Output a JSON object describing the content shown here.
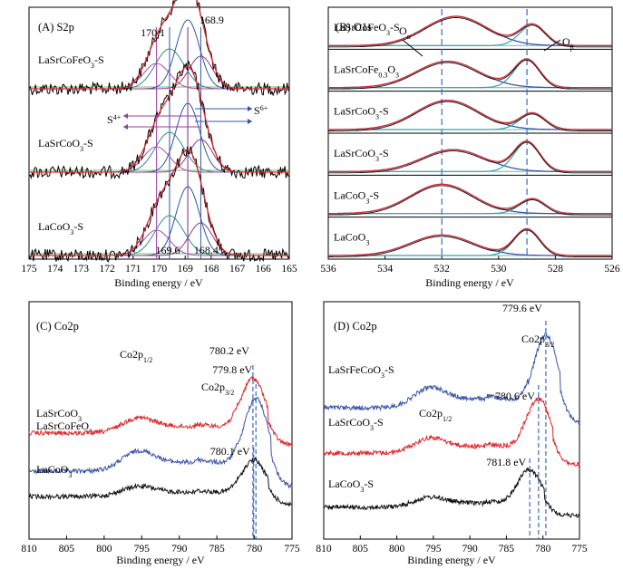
{
  "chart_data": [
    {
      "panel": "A",
      "title": "(A) S2p",
      "type": "line",
      "xlabel": "Binding energy / eV",
      "xlim": [
        175,
        165
      ],
      "xticks": [
        175,
        174,
        173,
        172,
        171,
        170,
        169,
        168,
        167,
        166,
        165
      ],
      "series": [
        {
          "name": "LaSrCoFeO3-S",
          "label": "LaSrCoFeO",
          "sub": "3",
          "suffix": "-S",
          "peak": 168.9,
          "amp": 1.0
        },
        {
          "name": "LaSrCoO3-S",
          "label": "LaSrCoO",
          "sub": "3",
          "suffix": "-S",
          "peak": 168.9,
          "amp": 1.0
        },
        {
          "name": "LaCoO3-S",
          "label": "LaCoO",
          "sub": "3",
          "suffix": "-S",
          "peak": 168.9,
          "amp": 1.0
        }
      ],
      "components": [
        170.1,
        169.6,
        168.9,
        168.4
      ],
      "annotations": {
        "top_left": "170.1",
        "top_right": "168.9",
        "bottom_left": "169.6",
        "bottom_right": "168.4",
        "s4": "S",
        "s4_sup": "4+",
        "s6": "S",
        "s6_sup": "6+"
      }
    },
    {
      "panel": "B",
      "title": "(B) O1s",
      "type": "line",
      "xlabel": "Binding energy / eV",
      "xlim": [
        536,
        526
      ],
      "xticks": [
        536,
        534,
        532,
        530,
        528,
        526
      ],
      "reference_lines": [
        532.0,
        529.0
      ],
      "series": [
        {
          "name": "LaSrCoFeO3-S",
          "label": "LaSrCoFeO",
          "sub": "3",
          "suffix": "-S",
          "oa_center": 531.5,
          "oa_amp": 1.0,
          "ob_center": 528.8,
          "ob_amp": 0.7
        },
        {
          "name": "LaSrCoFe0.3O3",
          "label": "LaSrCoFe",
          "sub": "0.3",
          "mid": "O",
          "sub2": "3",
          "suffix": "",
          "oa_center": 531.8,
          "oa_amp": 0.9,
          "ob_center": 529.0,
          "ob_amp": 0.95
        },
        {
          "name": "LaSrCoO3-S",
          "label": "LaSrCoO",
          "sub": "3",
          "suffix": "-S",
          "oa_center": 531.8,
          "oa_amp": 1.0,
          "ob_center": 528.8,
          "ob_amp": 0.55
        },
        {
          "name": "LaSrCoO3-S",
          "label": "LaSrCoO",
          "sub": "3",
          "suffix": "-S",
          "oa_center": 531.6,
          "oa_amp": 0.75,
          "ob_center": 529.0,
          "ob_amp": 1.0
        },
        {
          "name": "LaCoO3-S",
          "label": "LaCoO",
          "sub": "3",
          "suffix": "-S",
          "oa_center": 532.0,
          "oa_amp": 1.0,
          "ob_center": 528.8,
          "ob_amp": 0.5
        },
        {
          "name": "LaCoO3",
          "label": "LaCoO",
          "sub": "3",
          "suffix": "",
          "oa_center": 532.0,
          "oa_amp": 0.7,
          "ob_center": 529.0,
          "ob_amp": 0.9
        }
      ],
      "annotations": {
        "oa": "O",
        "oa_sub": "α",
        "ob": "O",
        "ob_sub": "β"
      }
    },
    {
      "panel": "C",
      "title": "(C) Co2p",
      "type": "line",
      "xlabel": "Binding energy / eV",
      "xlim": [
        810,
        775
      ],
      "xticks": [
        810,
        805,
        800,
        795,
        790,
        785,
        780,
        775
      ],
      "series": [
        {
          "name": "LaSrCoFeO3",
          "label": "LaSrCoFeO",
          "sub": "3",
          "suffix": "",
          "color": "#3a55a8",
          "peak": 779.8,
          "peak_label": "779.8 eV"
        },
        {
          "name": "LaSrCoO3",
          "label": "LaSrCoO",
          "sub": "3",
          "suffix": "",
          "color": "#e0252a",
          "peak": 780.2,
          "peak_label": "780.2 eV"
        },
        {
          "name": "LaCoO3",
          "label": "LaCoO",
          "sub": "3",
          "suffix": "",
          "color": "#111111",
          "peak": 780.1,
          "peak_label": "780.1 eV"
        }
      ],
      "annotations": {
        "p12": "Co2p",
        "p12_sub": "1/2",
        "p32": "Co2p",
        "p32_sub": "3/2"
      }
    },
    {
      "panel": "D",
      "title": "(D) Co2p",
      "type": "line",
      "xlabel": "Binding energy / eV",
      "xlim": [
        810,
        775
      ],
      "xticks": [
        810,
        805,
        800,
        795,
        790,
        785,
        780,
        775
      ],
      "series": [
        {
          "name": "LaSrFeCoO3-S",
          "label": "LaSrFeCoO",
          "sub": "3",
          "suffix": "-S",
          "color": "#3a55a8",
          "peak": 779.6,
          "peak_label": "779.6 eV"
        },
        {
          "name": "LaSrCoO3-S",
          "label": "LaSrCoO",
          "sub": "3",
          "suffix": "-S",
          "color": "#e0252a",
          "peak": 780.6,
          "peak_label": "780.6 eV"
        },
        {
          "name": "LaCoO3-S",
          "label": "LaCoO",
          "sub": "3",
          "suffix": "-S",
          "color": "#111111",
          "peak": 781.8,
          "peak_label": "781.8 eV"
        }
      ],
      "annotations": {
        "p12": "Co2p",
        "p12_sub": "1/2",
        "p32": "Co2p",
        "p32_sub": "3/2"
      }
    }
  ]
}
